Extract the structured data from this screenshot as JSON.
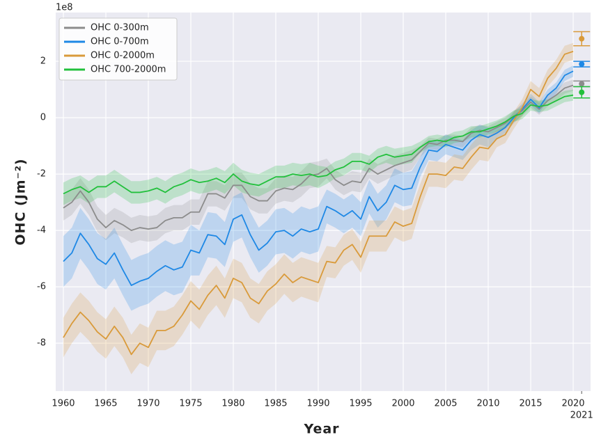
{
  "chart_data": {
    "type": "line",
    "ylabel": "OHC (Jm⁻²)",
    "xlabel": "Year",
    "offset_label": "1e8",
    "x": [
      1960,
      1961,
      1962,
      1963,
      1964,
      1965,
      1966,
      1967,
      1968,
      1969,
      1970,
      1971,
      1972,
      1973,
      1974,
      1975,
      1976,
      1977,
      1978,
      1979,
      1980,
      1981,
      1982,
      1983,
      1984,
      1985,
      1986,
      1987,
      1988,
      1989,
      1990,
      1991,
      1992,
      1993,
      1994,
      1995,
      1996,
      1997,
      1998,
      1999,
      2000,
      2001,
      2002,
      2003,
      2004,
      2005,
      2006,
      2007,
      2008,
      2009,
      2010,
      2011,
      2012,
      2013,
      2014,
      2015,
      2016,
      2017,
      2018,
      2019,
      2020
    ],
    "xlim": [
      1959.1,
      2022.05
    ],
    "ylim": [
      -9.7,
      3.73
    ],
    "xticks": [
      1960,
      1965,
      1970,
      1975,
      1980,
      1985,
      1990,
      1995,
      2000,
      2005,
      2010,
      2015,
      2020,
      2021
    ],
    "yticks": [
      -8,
      -6,
      -4,
      -2,
      0,
      2
    ],
    "grid": true,
    "legend": "upper left",
    "series": [
      {
        "name": "OHC 0-300m",
        "color": "#8c8c8c",
        "values": [
          -3.2,
          -3.0,
          -2.6,
          -3.0,
          -3.6,
          -3.9,
          -3.65,
          -3.8,
          -4.0,
          -3.9,
          -3.95,
          -3.9,
          -3.65,
          -3.55,
          -3.55,
          -3.35,
          -3.35,
          -2.7,
          -2.7,
          -2.85,
          -2.4,
          -2.4,
          -2.8,
          -2.95,
          -2.95,
          -2.6,
          -2.5,
          -2.55,
          -2.35,
          -2.05,
          -2.0,
          -1.8,
          -2.2,
          -2.4,
          -2.25,
          -2.3,
          -1.8,
          -2.0,
          -1.85,
          -1.7,
          -1.6,
          -1.5,
          -1.2,
          -0.9,
          -0.95,
          -0.8,
          -0.8,
          -0.85,
          -0.55,
          -0.45,
          -0.5,
          -0.35,
          -0.2,
          0.05,
          0.25,
          0.55,
          0.3,
          0.6,
          0.8,
          1.05,
          1.15
        ],
        "errors": [
          0.45,
          0.45,
          0.45,
          0.45,
          0.45,
          0.45,
          0.45,
          0.45,
          0.45,
          0.45,
          0.45,
          0.45,
          0.45,
          0.45,
          0.45,
          0.45,
          0.45,
          0.45,
          0.45,
          0.45,
          0.45,
          0.45,
          0.45,
          0.45,
          0.45,
          0.45,
          0.45,
          0.45,
          0.45,
          0.45,
          0.45,
          0.35,
          0.35,
          0.35,
          0.35,
          0.35,
          0.35,
          0.35,
          0.35,
          0.35,
          0.35,
          0.35,
          0.2,
          0.2,
          0.2,
          0.2,
          0.2,
          0.2,
          0.2,
          0.2,
          0.2,
          0.2,
          0.2,
          0.2,
          0.2,
          0.2,
          0.2,
          0.2,
          0.2,
          0.2,
          0.2
        ],
        "latest": {
          "x": 2021,
          "value": 1.2,
          "error": 0.1
        }
      },
      {
        "name": "OHC 0-700m",
        "color": "#1e88e5",
        "values": [
          -5.1,
          -4.8,
          -4.1,
          -4.5,
          -5.0,
          -5.2,
          -4.8,
          -5.4,
          -5.95,
          -5.8,
          -5.7,
          -5.45,
          -5.25,
          -5.4,
          -5.3,
          -4.7,
          -4.8,
          -4.15,
          -4.2,
          -4.5,
          -3.6,
          -3.45,
          -4.15,
          -4.7,
          -4.45,
          -4.05,
          -4.0,
          -4.2,
          -3.95,
          -4.05,
          -3.95,
          -3.15,
          -3.3,
          -3.5,
          -3.3,
          -3.6,
          -2.8,
          -3.3,
          -3.0,
          -2.4,
          -2.55,
          -2.5,
          -1.75,
          -1.15,
          -1.2,
          -0.95,
          -1.05,
          -1.15,
          -0.8,
          -0.6,
          -0.7,
          -0.55,
          -0.35,
          0.0,
          0.3,
          0.65,
          0.35,
          0.8,
          1.05,
          1.5,
          1.65
        ],
        "errors": [
          0.9,
          0.9,
          0.9,
          0.9,
          0.9,
          0.9,
          0.9,
          0.9,
          0.9,
          0.9,
          0.9,
          0.9,
          0.9,
          0.9,
          0.9,
          0.9,
          0.8,
          0.8,
          0.8,
          0.8,
          0.8,
          0.8,
          0.8,
          0.8,
          0.8,
          0.8,
          0.8,
          0.8,
          0.8,
          0.8,
          0.8,
          0.6,
          0.6,
          0.6,
          0.6,
          0.6,
          0.6,
          0.6,
          0.6,
          0.6,
          0.6,
          0.6,
          0.35,
          0.35,
          0.35,
          0.35,
          0.35,
          0.35,
          0.35,
          0.35,
          0.35,
          0.2,
          0.2,
          0.2,
          0.2,
          0.2,
          0.2,
          0.2,
          0.2,
          0.2,
          0.2
        ],
        "latest": {
          "x": 2021,
          "value": 1.9,
          "error": 0.1
        }
      },
      {
        "name": "OHC 0-2000m",
        "color": "#d99a3a",
        "values": [
          -7.8,
          -7.3,
          -6.9,
          -7.2,
          -7.6,
          -7.85,
          -7.4,
          -7.8,
          -8.4,
          -8.0,
          -8.15,
          -7.55,
          -7.55,
          -7.4,
          -7.0,
          -6.5,
          -6.8,
          -6.3,
          -5.95,
          -6.4,
          -5.7,
          -5.85,
          -6.4,
          -6.6,
          -6.15,
          -5.9,
          -5.55,
          -5.85,
          -5.65,
          -5.75,
          -5.85,
          -5.1,
          -5.15,
          -4.7,
          -4.5,
          -4.95,
          -4.2,
          -4.2,
          -4.2,
          -3.7,
          -3.85,
          -3.75,
          -2.8,
          -2.0,
          -2.0,
          -2.05,
          -1.75,
          -1.8,
          -1.4,
          -1.05,
          -1.1,
          -0.75,
          -0.6,
          -0.1,
          0.35,
          1.0,
          0.75,
          1.4,
          1.75,
          2.25,
          2.35
        ],
        "errors": [
          0.7,
          0.7,
          0.7,
          0.7,
          0.7,
          0.7,
          0.7,
          0.7,
          0.7,
          0.7,
          0.7,
          0.7,
          0.7,
          0.7,
          0.7,
          0.7,
          0.7,
          0.7,
          0.7,
          0.7,
          0.7,
          0.7,
          0.7,
          0.7,
          0.7,
          0.7,
          0.7,
          0.7,
          0.7,
          0.7,
          0.7,
          0.55,
          0.55,
          0.55,
          0.55,
          0.55,
          0.55,
          0.55,
          0.55,
          0.55,
          0.55,
          0.55,
          0.45,
          0.45,
          0.45,
          0.45,
          0.45,
          0.45,
          0.45,
          0.45,
          0.45,
          0.3,
          0.3,
          0.3,
          0.3,
          0.3,
          0.3,
          0.3,
          0.3,
          0.3,
          0.3
        ],
        "latest": {
          "x": 2021,
          "value": 2.8,
          "error": 0.25
        }
      },
      {
        "name": "OHC 700-2000m",
        "color": "#22c03c",
        "values": [
          -2.7,
          -2.55,
          -2.45,
          -2.65,
          -2.45,
          -2.45,
          -2.25,
          -2.45,
          -2.65,
          -2.65,
          -2.6,
          -2.5,
          -2.65,
          -2.45,
          -2.35,
          -2.2,
          -2.3,
          -2.25,
          -2.15,
          -2.3,
          -2.0,
          -2.25,
          -2.35,
          -2.4,
          -2.25,
          -2.1,
          -2.1,
          -2.0,
          -2.05,
          -2.0,
          -2.1,
          -2.05,
          -1.85,
          -1.75,
          -1.55,
          -1.55,
          -1.65,
          -1.4,
          -1.3,
          -1.4,
          -1.35,
          -1.3,
          -1.05,
          -0.85,
          -0.8,
          -0.85,
          -0.7,
          -0.65,
          -0.5,
          -0.5,
          -0.4,
          -0.3,
          -0.15,
          0.05,
          0.15,
          0.45,
          0.4,
          0.45,
          0.6,
          0.75,
          0.8
        ],
        "errors": [
          0.4,
          0.4,
          0.4,
          0.4,
          0.4,
          0.4,
          0.4,
          0.4,
          0.4,
          0.4,
          0.4,
          0.4,
          0.4,
          0.4,
          0.4,
          0.4,
          0.4,
          0.4,
          0.4,
          0.4,
          0.4,
          0.4,
          0.4,
          0.4,
          0.4,
          0.4,
          0.4,
          0.4,
          0.4,
          0.4,
          0.4,
          0.3,
          0.3,
          0.3,
          0.3,
          0.3,
          0.3,
          0.3,
          0.3,
          0.3,
          0.3,
          0.3,
          0.2,
          0.2,
          0.2,
          0.2,
          0.2,
          0.2,
          0.2,
          0.2,
          0.2,
          0.2,
          0.2,
          0.2,
          0.2,
          0.2,
          0.2,
          0.2,
          0.2,
          0.2,
          0.2
        ],
        "latest": {
          "x": 2021,
          "value": 0.9,
          "error": 0.2
        }
      }
    ]
  }
}
